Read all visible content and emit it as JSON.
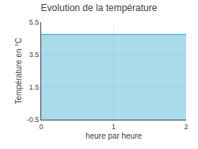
{
  "chart_data": {
    "type": "area",
    "title": "Evolution de la température",
    "xlabel": "heure par heure",
    "ylabel": "Température en °C",
    "x": [
      0,
      2
    ],
    "values": [
      4.75,
      4.75
    ],
    "color": "#55b8d8",
    "xlim": [
      0,
      2
    ],
    "ylim": [
      -0.5,
      5.5
    ],
    "xticks": [
      0,
      1,
      2
    ],
    "yticks": [
      -0.5,
      1.5,
      3.5,
      5.5
    ],
    "grid": true
  }
}
